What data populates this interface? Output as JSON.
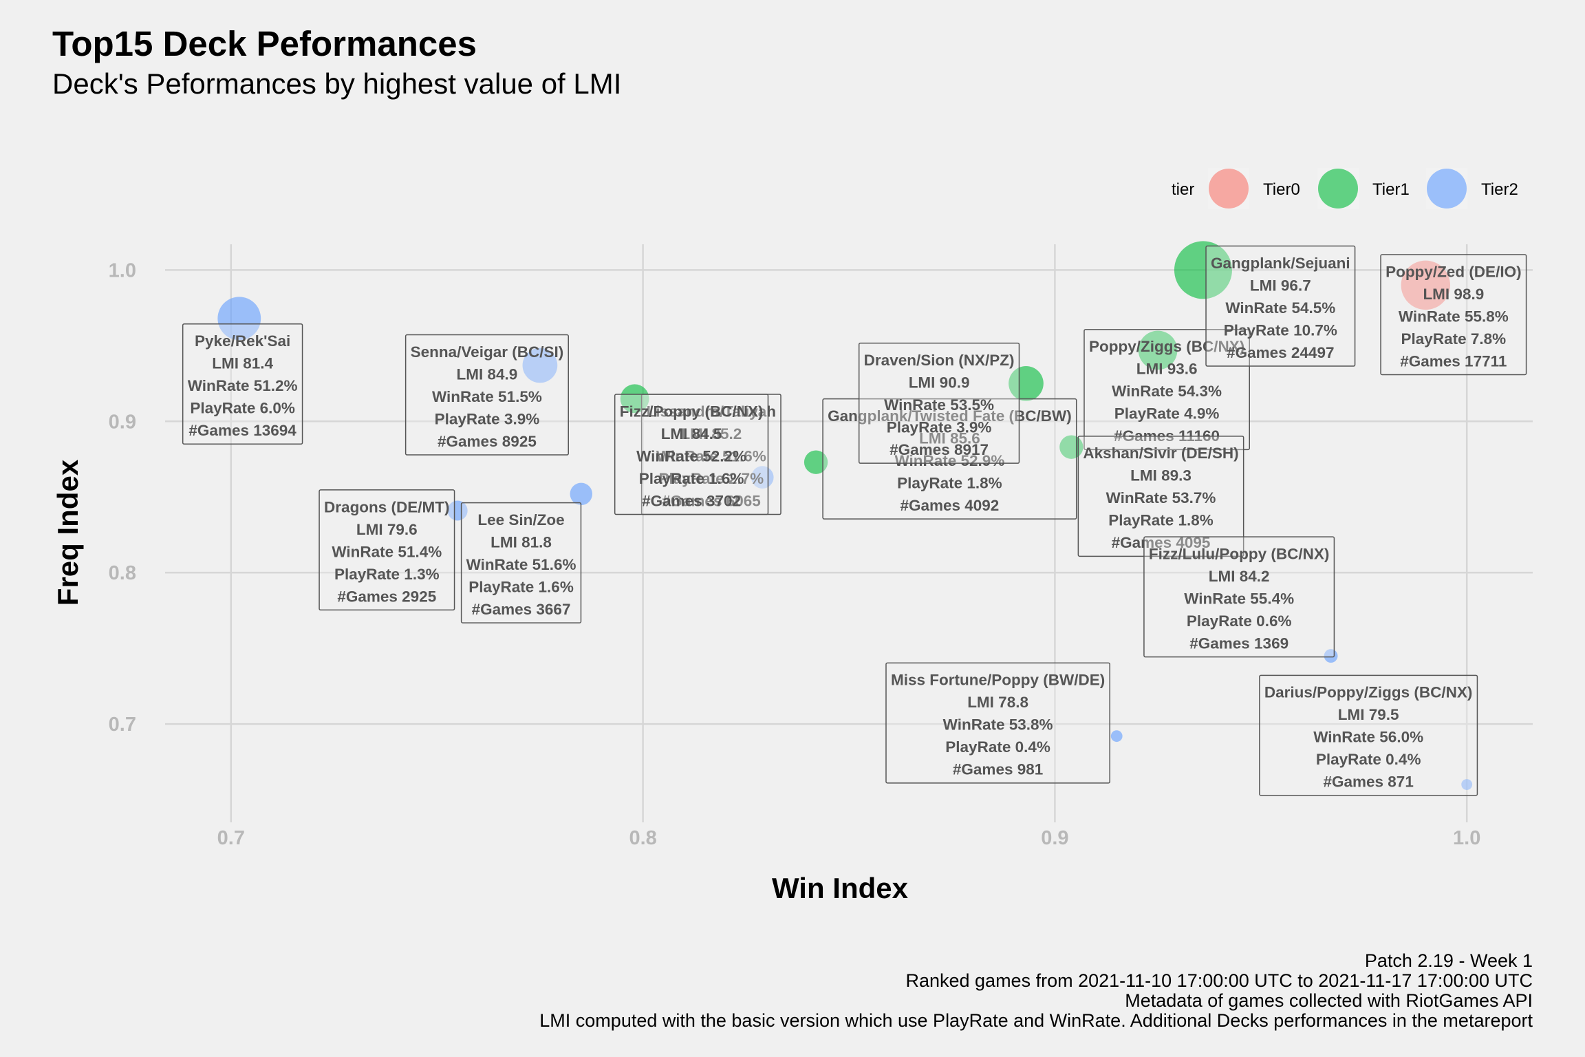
{
  "chart_data": {
    "type": "scatter",
    "title": "Top15 Deck Peformances",
    "subtitle": "Deck's Peformances by highest value of LMI",
    "xlabel": "Win Index",
    "ylabel": "Freq Index",
    "xlim": [
      0.684,
      1.016
    ],
    "ylim": [
      0.635,
      1.017
    ],
    "xticks": [
      "0.7",
      "0.8",
      "0.9",
      "1.0"
    ],
    "yticks": [
      "0.7",
      "0.8",
      "0.9",
      "1.0"
    ],
    "grid": true,
    "legend": {
      "title": "tier",
      "position": "top-right",
      "items": [
        {
          "name": "Tier0",
          "color": "#f8766d"
        },
        {
          "name": "Tier1",
          "color": "#00ba38"
        },
        {
          "name": "Tier2",
          "color": "#619cff"
        }
      ]
    },
    "size_variable": "#Games",
    "points": [
      {
        "deck": "Pyke/Rek'Sai",
        "tier": "Tier2",
        "x": 0.702,
        "y": 0.968,
        "lines": [
          "Pyke/Rek'Sai",
          "LMI 81.4",
          "WinRate 51.2%",
          "PlayRate 6.0%",
          "#Games 13694"
        ],
        "games": 13694
      },
      {
        "deck": "Senna/Veigar (BC/SI)",
        "tier": "Tier2",
        "x": 0.775,
        "y": 0.937,
        "lines": [
          "Senna/Veigar (BC/SI)",
          "LMI 84.9",
          "WinRate 51.5%",
          "PlayRate 3.9%",
          "#Games 8925"
        ],
        "games": 8925
      },
      {
        "deck": "Lissandra/Taliyah",
        "tier": "Tier1",
        "x": 0.798,
        "y": 0.915,
        "lines": [
          "Lissandra/Taliyah",
          "LMI 85.2",
          "WinRate 51.6%",
          "PlayRate 2.7%",
          "#Games 6065"
        ],
        "games": 6065
      },
      {
        "deck": "Dragons (DE/MT)",
        "tier": "Tier2",
        "x": 0.755,
        "y": 0.841,
        "lines": [
          "Dragons (DE/MT)",
          "LMI 79.6",
          "WinRate 51.4%",
          "PlayRate 1.3%",
          "#Games 2925"
        ],
        "games": 2925
      },
      {
        "deck": "Lee Sin/Zoe",
        "tier": "Tier2",
        "x": 0.785,
        "y": 0.852,
        "lines": [
          "Lee Sin/Zoe",
          "LMI 81.8",
          "WinRate 51.6%",
          "PlayRate 1.6%",
          "#Games 3667"
        ],
        "games": 3667
      },
      {
        "deck": "Fizz/Poppy (BC/NX)",
        "tier": "Tier2",
        "x": 0.829,
        "y": 0.863,
        "lines": [
          "Fizz/Poppy (BC/NX)",
          "LMI 84.5",
          "WinRate 52.2%",
          "PlayRate 1.6%",
          "#Games 3702"
        ],
        "games": 3702
      },
      {
        "deck": "Gangplank/Twisted Fate (BC/BW)",
        "tier": "Tier1",
        "x": 0.842,
        "y": 0.873,
        "lines": [
          "Gangplank/Twisted Fate (BC/BW)",
          "LMI 85.6",
          "WinRate 52.9%",
          "PlayRate 1.8%",
          "#Games 4092"
        ],
        "games": 4092
      },
      {
        "deck": "Draven/Sion (NX/PZ)",
        "tier": "Tier1",
        "x": 0.893,
        "y": 0.925,
        "lines": [
          "Draven/Sion (NX/PZ)",
          "LMI 90.9",
          "WinRate 53.5%",
          "PlayRate 3.9%",
          "#Games 8917"
        ],
        "games": 8917
      },
      {
        "deck": "Poppy/Ziggs (BC/NX)",
        "tier": "Tier1",
        "x": 0.925,
        "y": 0.947,
        "lines": [
          "Poppy/Ziggs (BC/NX)",
          "LMI 93.6",
          "WinRate 54.3%",
          "PlayRate 4.9%",
          "#Games 11160"
        ],
        "games": 11160
      },
      {
        "deck": "Gangplank/Sejuani",
        "tier": "Tier1",
        "x": 0.936,
        "y": 1.0,
        "lines": [
          "Gangplank/Sejuani",
          "LMI 96.7",
          "WinRate 54.5%",
          "PlayRate 10.7%",
          "#Games 24497"
        ],
        "games": 24497
      },
      {
        "deck": "Poppy/Zed (DE/IO)",
        "tier": "Tier0",
        "x": 0.99,
        "y": 0.99,
        "lines": [
          "Poppy/Zed (DE/IO)",
          "LMI 98.9",
          "WinRate 55.8%",
          "PlayRate 7.8%",
          "#Games 17711"
        ],
        "games": 17711
      },
      {
        "deck": "Akshan/Sivir (DE/SH)",
        "tier": "Tier1",
        "x": 0.904,
        "y": 0.883,
        "lines": [
          "Akshan/Sivir (DE/SH)",
          "LMI 89.3",
          "WinRate 53.7%",
          "PlayRate 1.8%",
          "#Games 4095"
        ],
        "games": 4095
      },
      {
        "deck": "Fizz/Lulu/Poppy (BC/NX)",
        "tier": "Tier2",
        "x": 0.967,
        "y": 0.745,
        "lines": [
          "Fizz/Lulu/Poppy (BC/NX)",
          "LMI 84.2",
          "WinRate 55.4%",
          "PlayRate 0.6%",
          "#Games 1369"
        ],
        "games": 1369
      },
      {
        "deck": "Miss Fortune/Poppy (BW/DE)",
        "tier": "Tier2",
        "x": 0.915,
        "y": 0.692,
        "lines": [
          "Miss Fortune/Poppy (BW/DE)",
          "LMI 78.8",
          "WinRate 53.8%",
          "PlayRate 0.4%",
          "#Games 981"
        ],
        "games": 981
      },
      {
        "deck": "Darius/Poppy/Ziggs (BC/NX)",
        "tier": "Tier2",
        "x": 1.0,
        "y": 0.66,
        "lines": [
          "Darius/Poppy/Ziggs (BC/NX)",
          "LMI 79.5",
          "WinRate 56.0%",
          "PlayRate 0.4%",
          "#Games 871"
        ],
        "games": 871
      }
    ]
  },
  "caption": [
    "Patch 2.19 - Week 1",
    "Ranked games from 2021-11-10 17:00:00 UTC to 2021-11-17 17:00:00 UTC",
    "Metadata of games collected with RiotGames API",
    "LMI computed with the basic version which use PlayRate and WinRate. Additional Decks performances in the metareport"
  ]
}
